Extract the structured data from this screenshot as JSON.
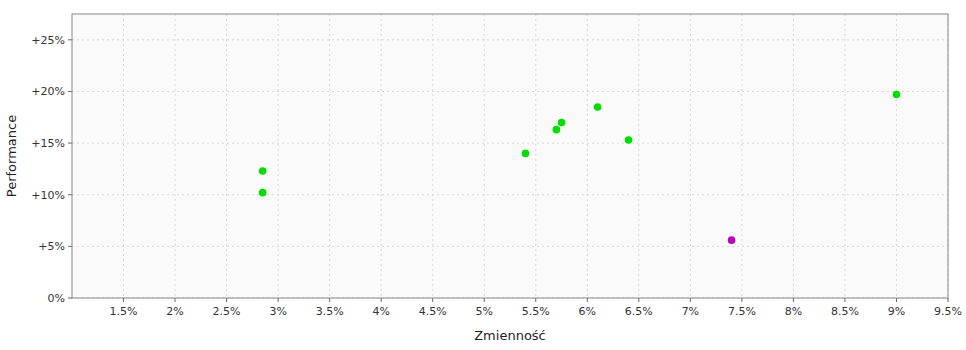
{
  "chart_data": {
    "type": "scatter",
    "xlabel": "Zmienność",
    "ylabel": "Performance",
    "xlim": [
      0.01,
      0.095
    ],
    "ylim": [
      0.0,
      0.275
    ],
    "xticks": [
      {
        "value": 0.015,
        "label": "1.5%"
      },
      {
        "value": 0.02,
        "label": "2%"
      },
      {
        "value": 0.025,
        "label": "2.5%"
      },
      {
        "value": 0.03,
        "label": "3%"
      },
      {
        "value": 0.035,
        "label": "3.5%"
      },
      {
        "value": 0.04,
        "label": "4%"
      },
      {
        "value": 0.045,
        "label": "4.5%"
      },
      {
        "value": 0.05,
        "label": "5%"
      },
      {
        "value": 0.055,
        "label": "5.5%"
      },
      {
        "value": 0.06,
        "label": "6%"
      },
      {
        "value": 0.065,
        "label": "6.5%"
      },
      {
        "value": 0.07,
        "label": "7%"
      },
      {
        "value": 0.075,
        "label": "7.5%"
      },
      {
        "value": 0.08,
        "label": "8%"
      },
      {
        "value": 0.085,
        "label": "8.5%"
      },
      {
        "value": 0.09,
        "label": "9%"
      },
      {
        "value": 0.095,
        "label": "9.5%"
      }
    ],
    "yticks": [
      {
        "value": 0.0,
        "label": "0%"
      },
      {
        "value": 0.05,
        "label": "+5%"
      },
      {
        "value": 0.1,
        "label": "+10%"
      },
      {
        "value": 0.15,
        "label": "+15%"
      },
      {
        "value": 0.2,
        "label": "+20%"
      },
      {
        "value": 0.25,
        "label": "+25%"
      }
    ],
    "grid": true,
    "series": [
      {
        "color": "#00dd00",
        "x": [
          0.0285,
          0.0285,
          0.054,
          0.057,
          0.0575,
          0.061,
          0.064,
          0.09
        ],
        "values": [
          0.123,
          0.102,
          0.14,
          0.163,
          0.17,
          0.185,
          0.153,
          0.197
        ]
      },
      {
        "color": "#bb00bb",
        "x": [
          0.074
        ],
        "values": [
          0.056
        ]
      }
    ]
  }
}
